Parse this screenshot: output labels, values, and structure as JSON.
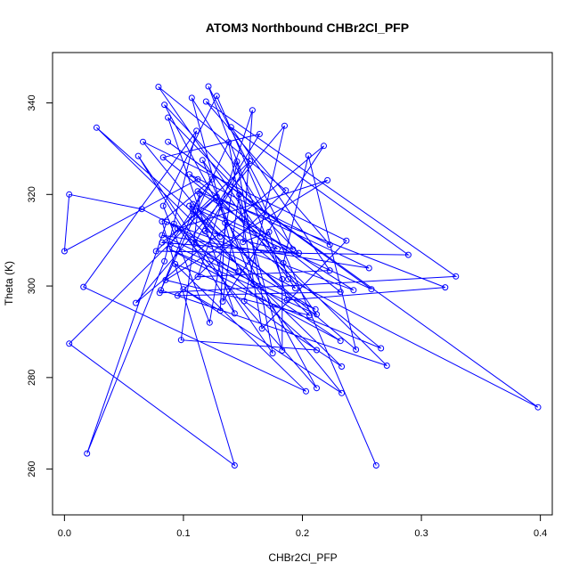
{
  "chart_data": {
    "type": "line",
    "title": "ATOM3 Northbound CHBr2Cl_PFP",
    "xlabel": "CHBr2Cl_PFP",
    "ylabel": "Theta (K)",
    "xlim": [
      -0.01,
      0.41
    ],
    "ylim": [
      250,
      351
    ],
    "x_ticks": [
      0.0,
      0.1,
      0.2,
      0.3,
      0.4
    ],
    "y_ticks": [
      260,
      280,
      300,
      320,
      340
    ],
    "x_tick_labels": [
      "0.0",
      "0.1",
      "0.2",
      "0.3",
      "0.4"
    ],
    "y_tick_labels": [
      "260",
      "280",
      "300",
      "320",
      "340"
    ],
    "grid": false,
    "legend": "none",
    "color": "#0000ff",
    "series": [
      {
        "x": [
          0.262,
          0.128,
          0.083,
          0.122,
          0.145,
          0.175,
          0.062,
          0.143,
          0.087,
          0.197,
          0.082,
          0.127,
          0.004,
          0.143,
          0.082,
          0.124,
          0.089,
          0.211,
          0.095,
          0.221,
          0.085,
          0.206,
          0.108,
          0.192,
          0.121,
          0.183,
          0.183,
          0.147,
          0.133,
          0.218,
          0.06,
          0.185,
          0.151,
          0.233,
          0.027,
          0.131,
          0.066,
          0.237,
          0.166,
          0.138,
          0.081,
          0.271,
          0.128,
          0.256,
          0.082,
          0.146,
          0.107,
          0.17,
          0.084,
          0.212,
          0.092,
          0.212,
          0.098,
          0.114,
          0.08,
          0.329,
          0.119,
          0.223,
          0.105,
          0.232,
          0.095,
          0.186,
          0.079,
          0.212,
          0.088,
          0.232,
          0.109,
          0.164,
          0.083,
          0.179,
          0.118,
          0.156,
          0.077,
          0.289,
          0.14,
          0.223,
          0.112,
          0.158,
          0.15,
          0.172,
          0.187,
          0.32,
          0.112,
          0.243,
          0.086,
          0.019,
          0.084,
          0.111,
          0.016,
          0.203,
          0.093,
          0.266,
          0.135,
          0.131,
          0.1,
          0.233,
          0.105,
          0.258,
          0.087,
          0.398,
          0.188,
          0.184,
          0.205,
          0.245,
          0.108,
          0.159,
          0.116,
          0.194,
          0.065,
          0.004,
          0.0,
          0.112
        ],
        "y": [
          260.8,
          341.5,
          317.5,
          292.0,
          327.2,
          285.3,
          328.4,
          294.0,
          336.8,
          307.2,
          309.5,
          319.2,
          287.4,
          260.8,
          314.1,
          323.3,
          309.1,
          294.9,
          312.5,
          323.1,
          301.3,
          293.6,
          317.9,
          308.0,
          343.6,
          301.5,
          285.9,
          320.0,
          296.6,
          330.6,
          296.3,
          335.0,
          296.7,
          282.4,
          334.6,
          310.8,
          331.5,
          309.9,
          290.7,
          331.4,
          299.1,
          282.6,
          319.5,
          303.9,
          311.1,
          303.2,
          341.1,
          315.4,
          339.6,
          277.7,
          313.6,
          286.0,
          288.2,
          320.1,
          298.5,
          302.1,
          340.3,
          309.0,
          324.4,
          298.7,
          297.9,
          320.9,
          343.5,
          293.8,
          308.1,
          288.0,
          309.2,
          333.2,
          328.1,
          308.1,
          312.0,
          327.3,
          307.6,
          306.8,
          334.7,
          303.4,
          302.0,
          338.4,
          309.6,
          311.8,
          296.9,
          299.7,
          320.7,
          299.1,
          314.0,
          263.4,
          305.4,
          333.9,
          299.8,
          277.0,
          304.8,
          286.4,
          313.8,
          294.6,
          299.3,
          276.6,
          317.5,
          299.3,
          331.5,
          273.5,
          301.5,
          305.0,
          328.5,
          286.1,
          316.3,
          300.4,
          327.5,
          299.5,
          316.8,
          320.0,
          307.6,
          323.3
        ]
      }
    ]
  }
}
